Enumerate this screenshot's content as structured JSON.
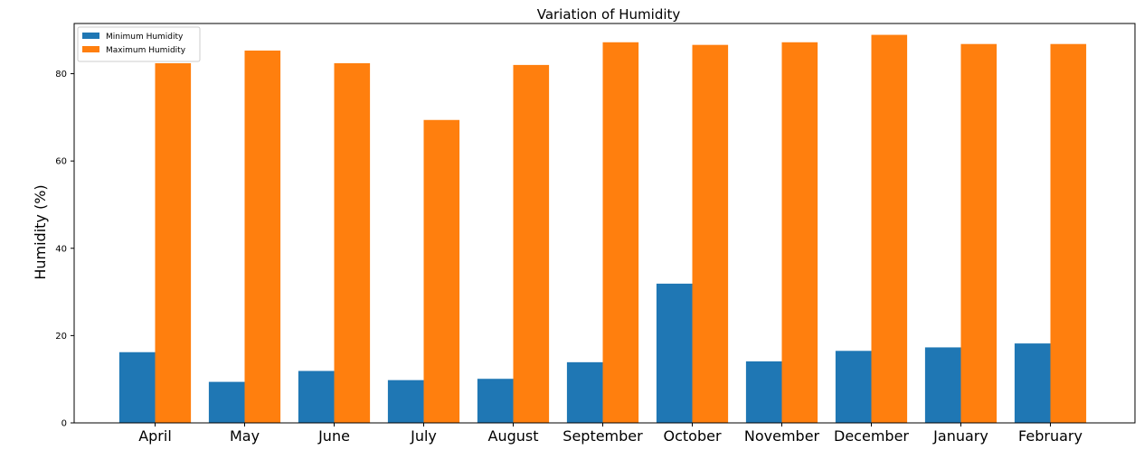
{
  "chart_data": {
    "type": "bar",
    "title": "Variation of Humidity",
    "xlabel": "",
    "ylabel": "Humidity (%)",
    "categories": [
      "April",
      "May",
      "June",
      "July",
      "August",
      "September",
      "October",
      "November",
      "December",
      "January",
      "February"
    ],
    "series": [
      {
        "name": "Minimum Humidity",
        "color": "#1f77b4",
        "values": [
          16.2,
          9.4,
          11.9,
          9.8,
          10.1,
          13.9,
          31.9,
          14.1,
          16.5,
          17.3,
          18.2
        ]
      },
      {
        "name": "Maximum Humidity",
        "color": "#ff7f0e",
        "values": [
          82.4,
          85.3,
          82.4,
          69.4,
          82.0,
          87.2,
          86.6,
          87.2,
          88.9,
          86.8,
          86.8
        ]
      }
    ],
    "ylim": [
      0,
      91.5
    ],
    "yticks": [
      "0",
      "20",
      "40",
      "60",
      "80"
    ],
    "grid": false,
    "legend_position": "upper-left"
  }
}
